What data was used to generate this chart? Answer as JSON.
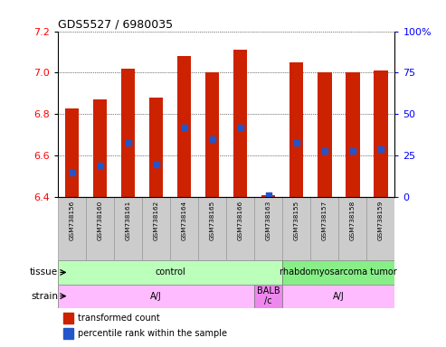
{
  "title": "GDS5527 / 6980035",
  "samples": [
    "GSM738156",
    "GSM738160",
    "GSM738161",
    "GSM738162",
    "GSM738164",
    "GSM738165",
    "GSM738166",
    "GSM738163",
    "GSM738155",
    "GSM738157",
    "GSM738158",
    "GSM738159"
  ],
  "transformed_counts": [
    6.83,
    6.87,
    7.02,
    6.88,
    7.08,
    7.0,
    7.11,
    6.41,
    7.05,
    7.0,
    7.0,
    7.01
  ],
  "percentile_ranks": [
    15,
    19,
    33,
    20,
    42,
    35,
    42,
    1,
    33,
    28,
    28,
    29
  ],
  "bar_bottom": 6.4,
  "ylim_left": [
    6.4,
    7.2
  ],
  "ylim_right": [
    0,
    100
  ],
  "yticks_left": [
    6.4,
    6.6,
    6.8,
    7.0,
    7.2
  ],
  "yticks_right": [
    0,
    25,
    50,
    75,
    100
  ],
  "bar_color": "#cc2200",
  "dot_color": "#2255cc",
  "tissue_groups": [
    {
      "label": "control",
      "start": 0,
      "end": 7,
      "color": "#bbffbb"
    },
    {
      "label": "rhabdomyosarcoma tumor",
      "start": 8,
      "end": 11,
      "color": "#88ee88"
    }
  ],
  "strain_groups": [
    {
      "label": "A/J",
      "start": 0,
      "end": 6,
      "color": "#ffbbff"
    },
    {
      "label": "BALB\n/c",
      "start": 7,
      "end": 7,
      "color": "#ee88ee"
    },
    {
      "label": "A/J",
      "start": 8,
      "end": 11,
      "color": "#ffbbff"
    }
  ],
  "legend_bar_color": "#cc2200",
  "legend_dot_color": "#2255cc",
  "left_color": "red",
  "right_color": "blue"
}
